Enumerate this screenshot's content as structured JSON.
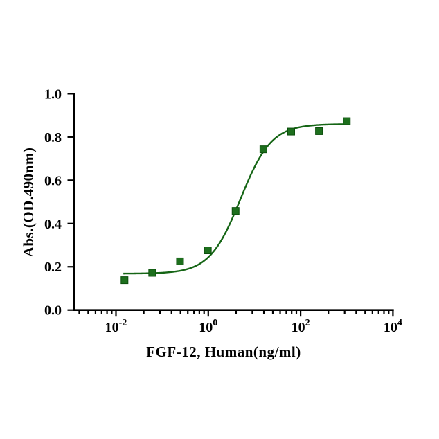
{
  "page": {
    "background": "#ffffff"
  },
  "chart_data": {
    "type": "scatter",
    "subtype": "dose-response-curve-with-4PL-fit",
    "title": "",
    "xlabel": "FGF-12, Human(ng/ml)",
    "ylabel": "Abs.(OD.490nm)",
    "x_scale": "log10",
    "grid": false,
    "legend": "none",
    "x": [
      0.0153,
      0.061,
      0.244,
      0.977,
      3.906,
      15.625,
      62.5,
      250,
      1000
    ],
    "y": [
      0.138,
      0.172,
      0.225,
      0.276,
      0.458,
      0.743,
      0.825,
      0.827,
      0.873
    ],
    "x_axis": {
      "log_min": -2.91,
      "log_max": 4,
      "major_ticks": [
        {
          "exponent": -2,
          "base": "10",
          "sup": "-2"
        },
        {
          "exponent": 0,
          "base": "10",
          "sup": "0"
        },
        {
          "exponent": 2,
          "base": "10",
          "sup": "2"
        },
        {
          "exponent": 4,
          "base": "10",
          "sup": "4"
        }
      ],
      "minor_interval_starts": [
        -4,
        -2,
        0,
        2
      ],
      "minor_subdivisions": [
        2,
        3,
        4,
        5,
        6,
        7,
        8,
        9
      ]
    },
    "y_axis": {
      "min": 0.0,
      "max": 1.0,
      "tick_values": [
        0.0,
        0.2,
        0.4,
        0.6,
        0.8,
        1.0
      ],
      "tick_labels": [
        "0.0",
        "0.2",
        "0.4",
        "0.6",
        "0.8",
        "1.0"
      ]
    },
    "fit_curve": {
      "model": "4PL",
      "bottom": 0.168,
      "top": 0.86,
      "ec50": 5.0,
      "hill": 1.3,
      "draw_log_range": [
        -1.84,
        3.03
      ]
    },
    "style": {
      "curve_color": "#156515",
      "curve_width": 2.4,
      "marker_shape": "square",
      "marker_fill": "#1d6f1d",
      "marker_edge": "#0c4f0c",
      "marker_size": 10,
      "axis_color": "#000000"
    }
  }
}
